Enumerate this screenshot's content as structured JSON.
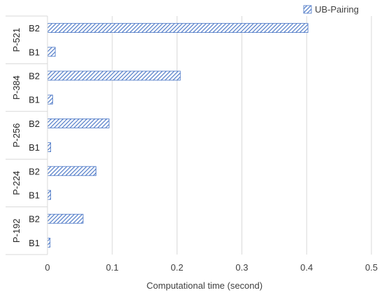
{
  "chart_data": {
    "type": "bar",
    "orientation": "horizontal",
    "groups": [
      {
        "label": "P-521",
        "categories": [
          "B2",
          "B1"
        ],
        "values": [
          0.402,
          0.012
        ]
      },
      {
        "label": "P-384",
        "categories": [
          "B2",
          "B1"
        ],
        "values": [
          0.205,
          0.008
        ]
      },
      {
        "label": "P-256",
        "categories": [
          "B2",
          "B1"
        ],
        "values": [
          0.095,
          0.005
        ]
      },
      {
        "label": "P-224",
        "categories": [
          "B2",
          "B1"
        ],
        "values": [
          0.075,
          0.005
        ]
      },
      {
        "label": "P-192",
        "categories": [
          "B2",
          "B1"
        ],
        "values": [
          0.055,
          0.004
        ]
      }
    ],
    "series": [
      {
        "name": "UB-Pairing"
      }
    ],
    "xlabel": "Computational time (second)",
    "ylabel": "",
    "xlim": [
      0,
      0.5
    ],
    "xticks": [
      "0",
      "0.1",
      "0.2",
      "0.3",
      "0.4",
      "0.5"
    ],
    "grid": true,
    "legend_position": "top-right",
    "bar_color": "#4472c4",
    "bar_pattern": "diagonal-hatch"
  }
}
